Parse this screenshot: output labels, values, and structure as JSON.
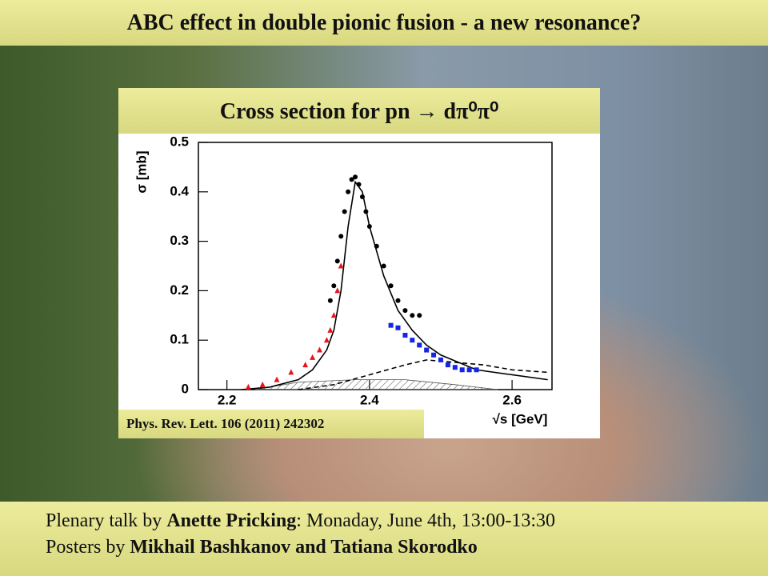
{
  "header": {
    "title": "ABC effect in double pionic fusion -  a new resonance?"
  },
  "panel": {
    "title": "Cross section  for pn → dπ⁰π⁰",
    "citation": "Phys. Rev. Lett. 106 (2011) 242302"
  },
  "chart_data": {
    "type": "scatter",
    "ylabel": "σ [mb]",
    "xlabel": "√s [GeV]",
    "xlim": [
      2.16,
      2.656
    ],
    "ylim": [
      0,
      0.5
    ],
    "xticks": [
      2.2,
      2.4,
      2.6
    ],
    "yticks": [
      0,
      0.1,
      0.2,
      0.3,
      0.4,
      0.5
    ],
    "series": [
      {
        "style": "area",
        "color": "#555555",
        "x": [
          2.24,
          2.3,
          2.38,
          2.45,
          2.52,
          2.58
        ],
        "values": [
          0,
          0.015,
          0.02,
          0.02,
          0.01,
          0
        ]
      },
      {
        "style": "dashed",
        "color": "#000000",
        "x": [
          2.3,
          2.35,
          2.4,
          2.45,
          2.48,
          2.52,
          2.56,
          2.6,
          2.65
        ],
        "values": [
          0,
          0.01,
          0.03,
          0.05,
          0.06,
          0.055,
          0.05,
          0.04,
          0.035
        ]
      },
      {
        "style": "line",
        "color": "#000000",
        "x": [
          2.22,
          2.26,
          2.3,
          2.32,
          2.34,
          2.35,
          2.36,
          2.37,
          2.38,
          2.39,
          2.4,
          2.42,
          2.44,
          2.46,
          2.48,
          2.5,
          2.55,
          2.6,
          2.65
        ],
        "values": [
          0,
          0.005,
          0.02,
          0.04,
          0.08,
          0.12,
          0.2,
          0.33,
          0.42,
          0.4,
          0.33,
          0.23,
          0.16,
          0.12,
          0.09,
          0.07,
          0.04,
          0.03,
          0.02
        ]
      },
      {
        "style": "triangle",
        "color": "#e8141c",
        "x": [
          2.23,
          2.25,
          2.27,
          2.29,
          2.31,
          2.32,
          2.33,
          2.34,
          2.345,
          2.35,
          2.355,
          2.36
        ],
        "values": [
          0.005,
          0.01,
          0.02,
          0.035,
          0.05,
          0.065,
          0.08,
          0.1,
          0.12,
          0.15,
          0.2,
          0.25
        ]
      },
      {
        "style": "circle",
        "color": "#000000",
        "x": [
          2.345,
          2.35,
          2.355,
          2.36,
          2.365,
          2.37,
          2.375,
          2.38,
          2.385,
          2.39,
          2.395,
          2.4,
          2.41,
          2.42,
          2.43,
          2.44,
          2.45,
          2.46,
          2.47
        ],
        "values": [
          0.18,
          0.21,
          0.26,
          0.31,
          0.36,
          0.4,
          0.425,
          0.43,
          0.415,
          0.39,
          0.36,
          0.33,
          0.29,
          0.25,
          0.21,
          0.18,
          0.16,
          0.15,
          0.15
        ]
      },
      {
        "style": "square",
        "color": "#1424e8",
        "x": [
          2.43,
          2.44,
          2.45,
          2.46,
          2.47,
          2.48,
          2.49,
          2.5,
          2.51,
          2.52,
          2.53,
          2.54,
          2.55
        ],
        "values": [
          0.13,
          0.125,
          0.11,
          0.1,
          0.09,
          0.08,
          0.07,
          0.06,
          0.05,
          0.045,
          0.04,
          0.04,
          0.04
        ]
      }
    ]
  },
  "footer": {
    "line1": [
      "Plenary talk by ",
      "Anette Pricking",
      ": Monaday, June 4th, 13:00-13:30"
    ],
    "line2": [
      "Posters by ",
      "Mikhail Bashkanov and Tatiana Skorodko"
    ]
  }
}
